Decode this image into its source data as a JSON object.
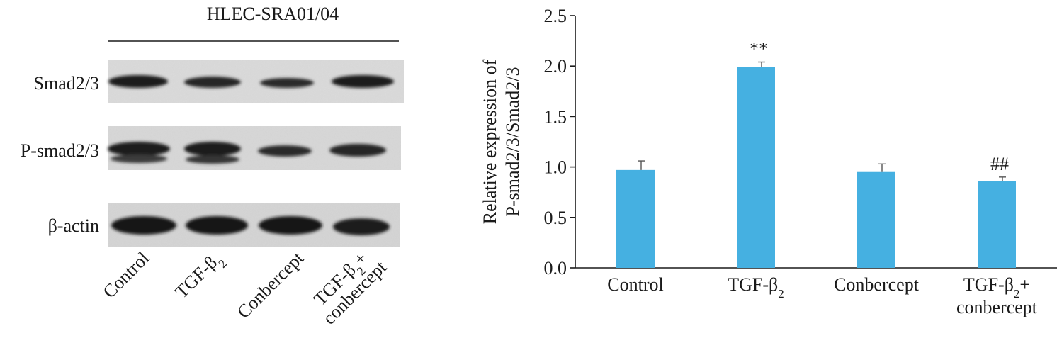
{
  "western_blot": {
    "cell_line": "HLEC-SRA01/04",
    "rows": [
      {
        "label": "Smad2/3"
      },
      {
        "label": "P-smad2/3"
      },
      {
        "label": "β-actin"
      }
    ],
    "lanes": [
      {
        "main": "Control",
        "sub": "",
        "tail": "",
        "line2": ""
      },
      {
        "main": "TGF-β",
        "sub": "2",
        "tail": "",
        "line2": ""
      },
      {
        "main": "Conbercept",
        "sub": "",
        "tail": "",
        "line2": ""
      },
      {
        "main": "TGF-β",
        "sub": "2",
        "tail": "+",
        "line2": "conbercept"
      }
    ]
  },
  "chart_data": {
    "type": "bar",
    "categories": [
      {
        "main": "Control",
        "sub": "",
        "tail": "",
        "line2": ""
      },
      {
        "main": "TGF-β",
        "sub": "2",
        "tail": "",
        "line2": ""
      },
      {
        "main": "Conbercept",
        "sub": "",
        "tail": "",
        "line2": ""
      },
      {
        "main": "TGF-β",
        "sub": "2",
        "tail": "+",
        "line2": "conbercept"
      }
    ],
    "values": [
      0.97,
      1.99,
      0.95,
      0.86
    ],
    "errors": [
      0.09,
      0.05,
      0.08,
      0.04
    ],
    "annotations": [
      "",
      "**",
      "",
      "##"
    ],
    "ylabel_lines": [
      "Relative expression of",
      "P-smad2/3/Smad2/3"
    ],
    "ylim": [
      0,
      2.5
    ],
    "yticks": [
      0.0,
      0.5,
      1.0,
      1.5,
      2.0,
      2.5
    ],
    "ytick_labels": [
      "0.0",
      "0.5",
      "1.0",
      "1.5",
      "2.0",
      "2.5"
    ],
    "bar_color": "#45b0e1",
    "grid": false
  }
}
